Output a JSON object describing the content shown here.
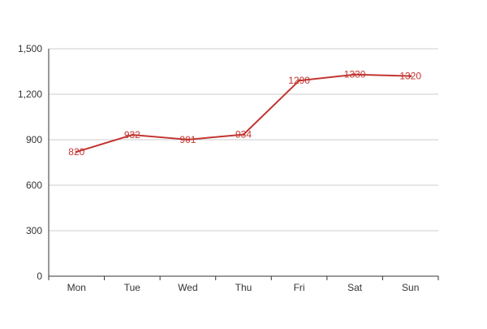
{
  "chart_data": {
    "type": "line",
    "categories": [
      "Mon",
      "Tue",
      "Wed",
      "Thu",
      "Fri",
      "Sat",
      "Sun"
    ],
    "series": [
      {
        "values": [
          820,
          932,
          901,
          934,
          1290,
          1330,
          1320
        ]
      }
    ],
    "data_labels": [
      "820",
      "932",
      "901",
      "934",
      "1290",
      "1330",
      "1320"
    ],
    "yticks": [
      0,
      300,
      600,
      900,
      1200,
      1500
    ],
    "ytick_labels": [
      "0",
      "300",
      "600",
      "900",
      "1,200",
      "1,500"
    ],
    "ylim": [
      0,
      1500
    ],
    "grid": true,
    "legend": "none",
    "title": "",
    "xlabel": "",
    "ylabel": ""
  },
  "colors": {
    "line": "#c23531",
    "grid": "#cccccc",
    "axis": "#333333"
  }
}
